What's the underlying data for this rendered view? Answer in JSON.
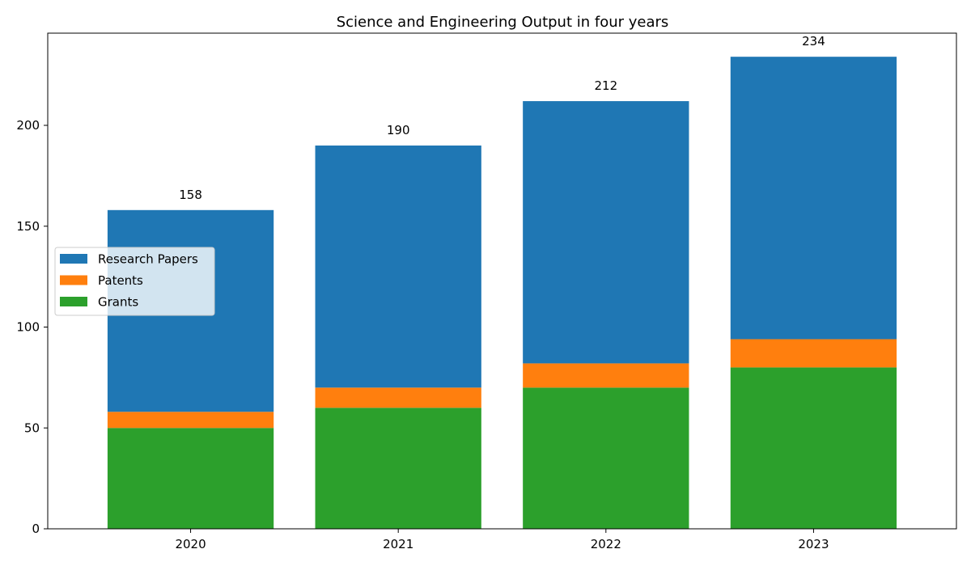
{
  "chart_data": {
    "type": "bar",
    "stacked": true,
    "title": "Science and Engineering Output in four years",
    "xlabel": "",
    "ylabel": "",
    "categories": [
      "2020",
      "2021",
      "2022",
      "2023"
    ],
    "series": [
      {
        "name": "Grants",
        "color": "#2ca02c",
        "values": [
          50,
          60,
          70,
          80
        ]
      },
      {
        "name": "Patents",
        "color": "#ff7f0e",
        "values": [
          8,
          10,
          12,
          14
        ]
      },
      {
        "name": "Research Papers",
        "color": "#1f77b4",
        "values": [
          100,
          120,
          130,
          140
        ]
      }
    ],
    "totals": [
      "158",
      "190",
      "212",
      "234"
    ],
    "legend_order": [
      "Research Papers",
      "Patents",
      "Grants"
    ],
    "ylim": [
      0,
      245.7
    ],
    "yticks": [
      0,
      50,
      100,
      150,
      200
    ],
    "grid": false,
    "legend_position": "center-left"
  }
}
